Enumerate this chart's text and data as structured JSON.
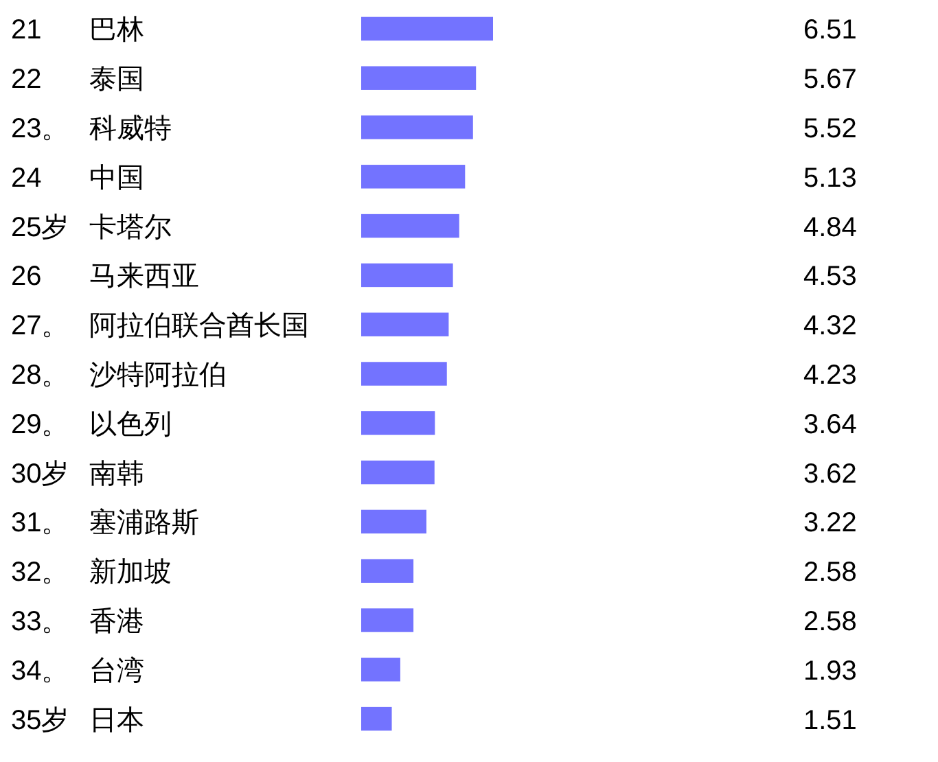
{
  "chart_data": {
    "type": "bar",
    "orientation": "horizontal",
    "categories": [
      "21 巴林",
      "22 泰国",
      "23。 科威特",
      "24 中国",
      "25岁 卡塔尔",
      "26 马来西亚",
      "27。 阿拉伯联合酋长国",
      "28。 沙特阿拉伯",
      "29。 以色列",
      "30岁 南韩",
      "31。 塞浦路斯",
      "32。 新加坡",
      "33。 香港",
      "34。 台湾",
      "35岁 日本"
    ],
    "values": [
      6.51,
      5.67,
      5.52,
      5.13,
      4.84,
      4.53,
      4.32,
      4.23,
      3.64,
      3.62,
      3.22,
      2.58,
      2.58,
      1.93,
      1.51
    ],
    "color": "#7373ff",
    "data_labels": true
  }
}
